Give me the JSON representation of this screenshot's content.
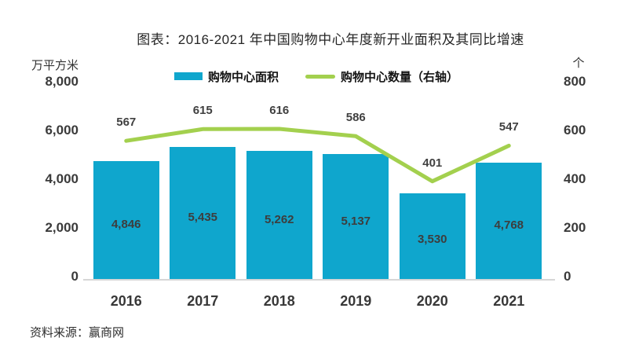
{
  "title": "图表：2016-2021 年中国购物中心年度新开业面积及其同比增速",
  "source": "资料来源：赢商网",
  "colors": {
    "bar": "#0fa6cd",
    "line": "#a3d04e",
    "axis_line": "#d6d6d6",
    "text_dark": "#3a3a3a"
  },
  "legend": {
    "items": [
      {
        "label": "购物中心面积",
        "type": "bar",
        "color": "#0fa6cd"
      },
      {
        "label": "购物中心数量（右轴）",
        "type": "line",
        "color": "#a3d04e"
      }
    ]
  },
  "left_axis": {
    "unit": "万平方米",
    "tick_labels": [
      "8,000",
      "6,000",
      "4,000",
      "2,000",
      "0"
    ],
    "tick_values": [
      8000,
      6000,
      4000,
      2000,
      0
    ]
  },
  "right_axis": {
    "unit": "个",
    "tick_labels": [
      "800",
      "600",
      "400",
      "200",
      "0"
    ],
    "tick_values": [
      800,
      600,
      400,
      200,
      0
    ]
  },
  "chart_data": {
    "type": "bar+line",
    "title": "图表：2016-2021 年中国购物中心年度新开业面积及其同比增速",
    "categories": [
      "2016",
      "2017",
      "2018",
      "2019",
      "2020",
      "2021"
    ],
    "series": [
      {
        "name": "购物中心面积",
        "type": "bar",
        "axis": "left",
        "color": "#0fa6cd",
        "values": [
          4846,
          5435,
          5262,
          5137,
          3530,
          4768
        ],
        "labels": [
          "4,846",
          "5,435",
          "5,262",
          "5,137",
          "3,530",
          "4,768"
        ]
      },
      {
        "name": "购物中心数量（右轴）",
        "type": "line",
        "axis": "right",
        "color": "#a3d04e",
        "values": [
          567,
          615,
          616,
          586,
          401,
          547
        ],
        "labels": [
          "567",
          "615",
          "616",
          "586",
          "401",
          "547"
        ]
      }
    ],
    "xlabel": "",
    "ylabel_left": "万平方米",
    "ylabel_right": "个",
    "left_ylim": [
      0,
      8000
    ],
    "right_ylim": [
      0,
      800
    ],
    "grid": false,
    "legend_position": "top"
  }
}
